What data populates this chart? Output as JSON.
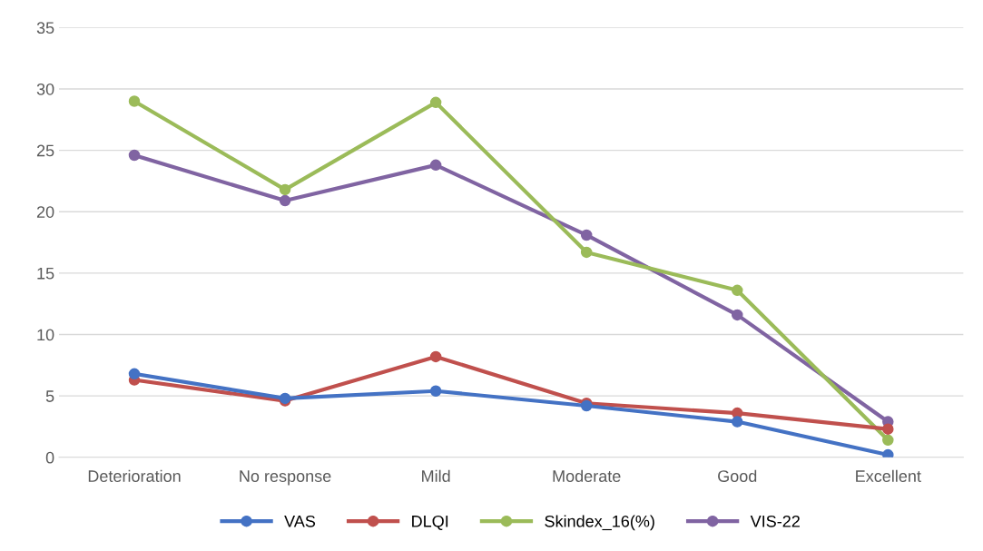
{
  "chart_data": {
    "type": "line",
    "categories": [
      "Deterioration",
      "No response",
      "Mild",
      "Moderate",
      "Good",
      "Excellent"
    ],
    "series": [
      {
        "name": "VAS",
        "color": "#4472c4",
        "values": [
          6.8,
          4.8,
          5.4,
          4.2,
          2.9,
          0.2
        ]
      },
      {
        "name": "DLQI",
        "color": "#c0504d",
        "values": [
          6.3,
          4.6,
          8.2,
          4.4,
          3.6,
          2.3
        ]
      },
      {
        "name": "Skindex_16(%)",
        "color": "#9bbb59",
        "values": [
          29,
          21.8,
          28.9,
          16.7,
          13.6,
          1.4
        ]
      },
      {
        "name": "VIS-22",
        "color": "#8064a2",
        "values": [
          24.6,
          20.9,
          23.8,
          18.1,
          11.6,
          2.9
        ]
      }
    ],
    "ylim": [
      0,
      35
    ],
    "yticks": [
      0,
      5,
      10,
      15,
      20,
      25,
      30,
      35
    ],
    "grid": "y",
    "legend": "bottom",
    "marker": "circle",
    "line_style": "solid"
  }
}
